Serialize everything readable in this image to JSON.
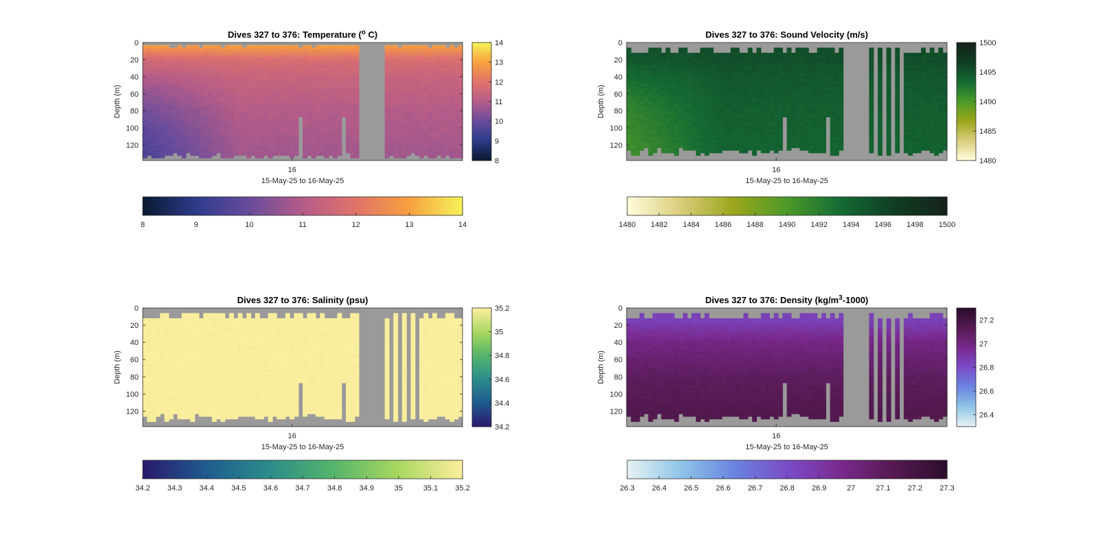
{
  "figure": {
    "panels": [
      {
        "id": "temperature",
        "title_main": "Dives 327 to 376: Temperature (",
        "title_sup": "o",
        "title_tail": " C)",
        "ylabel": "Depth (m)",
        "xtick": "16",
        "xlabel": "15-May-25 to 16-May-25",
        "yticks": [
          "0",
          "20",
          "40",
          "60",
          "80",
          "100",
          "120"
        ],
        "cbar_ticks": [
          "14",
          "13",
          "12",
          "11",
          "10",
          "9",
          "8"
        ],
        "hbar_ticks": [
          "8",
          "9",
          "10",
          "11",
          "12",
          "13",
          "14"
        ]
      },
      {
        "id": "sound-velocity",
        "title_main": "Dives 327 to 376: Sound Velocity (m/s)",
        "title_sup": "",
        "title_tail": "",
        "ylabel": "Depth (m)",
        "xtick": "16",
        "xlabel": "15-May-25 to 16-May-25",
        "yticks": [
          "0",
          "20",
          "40",
          "60",
          "80",
          "100",
          "120"
        ],
        "cbar_ticks": [
          "1500",
          "1495",
          "1490",
          "1485",
          "1480"
        ],
        "hbar_ticks": [
          "1480",
          "1482",
          "1484",
          "1486",
          "1488",
          "1490",
          "1492",
          "1494",
          "1496",
          "1498",
          "1500"
        ]
      },
      {
        "id": "salinity",
        "title_main": "Dives 327 to 376: Salinity (psu)",
        "title_sup": "",
        "title_tail": "",
        "ylabel": "Depth (m)",
        "xtick": "16",
        "xlabel": "15-May-25 to 16-May-25",
        "yticks": [
          "0",
          "20",
          "40",
          "60",
          "80",
          "100",
          "120"
        ],
        "cbar_ticks": [
          "35.2",
          "35",
          "34.8",
          "34.6",
          "34.4",
          "34.2"
        ],
        "hbar_ticks": [
          "34.2",
          "34.3",
          "34.4",
          "34.5",
          "34.6",
          "34.7",
          "34.8",
          "34.9",
          "35",
          "35.1",
          "35.2"
        ]
      },
      {
        "id": "density",
        "title_main": "Dives 327 to 376: Density (kg/m",
        "title_sup": "3",
        "title_tail": "-1000)",
        "ylabel": "Depth (m)",
        "xtick": "16",
        "xlabel": "15-May-25 to 16-May-25",
        "yticks": [
          "0",
          "20",
          "40",
          "60",
          "80",
          "100",
          "120"
        ],
        "cbar_ticks": [
          "27.2",
          "27",
          "26.8",
          "26.6",
          "26.4"
        ],
        "hbar_ticks": [
          "26.3",
          "26.4",
          "26.5",
          "26.6",
          "26.7",
          "26.8",
          "26.9",
          "27",
          "27.1",
          "27.2",
          "27.3"
        ]
      }
    ]
  },
  "chart_data": [
    {
      "type": "heatmap",
      "title": "Dives 327 to 376: Temperature (o C)",
      "ylabel": "Depth (m)",
      "xlabel": "15-May-25 to 16-May-25",
      "xticks": [
        "16"
      ],
      "ylim": [
        0,
        138
      ],
      "y_reversed": true,
      "clim": [
        8,
        14
      ],
      "colorbar_label_ticks": [
        8,
        9,
        10,
        11,
        12,
        13,
        14
      ],
      "colormap": [
        "#0a1a33",
        "#2e3b8c",
        "#6a4c9c",
        "#b55c88",
        "#e0736b",
        "#f7a03f",
        "#f6f05a"
      ],
      "missing_color": "#9a9a9a",
      "depth_profile_typical": {
        "depth": [
          5,
          20,
          40,
          60,
          80,
          100,
          120,
          135
        ],
        "value": [
          12.9,
          11.8,
          11.4,
          11.2,
          11.0,
          10.9,
          10.8,
          10.7
        ]
      },
      "depth_profile_early": {
        "depth": [
          5,
          20,
          40,
          60,
          80,
          100,
          120,
          135
        ],
        "value": [
          12.6,
          11.5,
          10.9,
          10.5,
          10.1,
          9.8,
          9.6,
          9.5
        ]
      },
      "gap_dives": "data missing mid-record (around dives 362-365)"
    },
    {
      "type": "heatmap",
      "title": "Dives 327 to 376: Sound Velocity (m/s)",
      "ylabel": "Depth (m)",
      "xlabel": "15-May-25 to 16-May-25",
      "xticks": [
        "16"
      ],
      "ylim": [
        0,
        138
      ],
      "y_reversed": true,
      "clim": [
        1480,
        1500
      ],
      "colormap": [
        "#fffbd8",
        "#d8cc7a",
        "#9aa61a",
        "#4c9a2a",
        "#156b34",
        "#0f3f24",
        "#15231a"
      ],
      "missing_color": "#9a9a9a",
      "depth_profile_typical": {
        "depth": [
          15,
          40,
          80,
          120
        ],
        "value": [
          1495.5,
          1494.8,
          1494.3,
          1494.0
        ]
      },
      "depth_profile_early": {
        "depth": [
          15,
          40,
          80,
          120
        ],
        "value": [
          1494.5,
          1493.2,
          1491.5,
          1490.8
        ]
      }
    },
    {
      "type": "heatmap",
      "title": "Dives 327 to 376: Salinity (psu)",
      "ylabel": "Depth (m)",
      "xlabel": "15-May-25 to 16-May-25",
      "xticks": [
        "16"
      ],
      "ylim": [
        0,
        138
      ],
      "y_reversed": true,
      "clim": [
        34.2,
        35.2
      ],
      "colormap": [
        "#2a1b6e",
        "#1f5d8f",
        "#2c8d8a",
        "#55b56a",
        "#a9d760",
        "#fbee9e"
      ],
      "missing_color": "#9a9a9a",
      "depth_profile_typical": {
        "depth": [
          15,
          60,
          120
        ],
        "value": [
          35.2,
          35.2,
          35.2
        ]
      }
    },
    {
      "type": "heatmap",
      "title": "Dives 327 to 376: Density (kg/m3-1000)",
      "ylabel": "Depth (m)",
      "xlabel": "15-May-25 to 16-May-25",
      "xticks": [
        "16"
      ],
      "ylim": [
        0,
        138
      ],
      "y_reversed": true,
      "clim": [
        26.3,
        27.3
      ],
      "colormap": [
        "#e4f1f3",
        "#8ec4e8",
        "#6a84e0",
        "#7a4cc8",
        "#7a2a8f",
        "#561a52",
        "#2c0d2e"
      ],
      "missing_color": "#9a9a9a",
      "depth_profile_typical": {
        "depth": [
          15,
          40,
          80,
          120
        ],
        "value": [
          26.85,
          27.0,
          27.1,
          27.15
        ]
      }
    }
  ]
}
